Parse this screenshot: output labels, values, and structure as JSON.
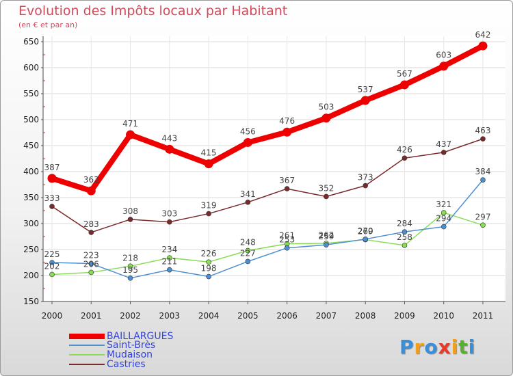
{
  "header": {
    "title": "Evolution des Impôts locaux par Habitant",
    "subtitle": "(en € et par an)"
  },
  "logo": {
    "text": "Proxiti",
    "colors": [
      "#3a8fd8",
      "#f0a020",
      "#3a8fd8",
      "#e83a2a",
      "#f0a020",
      "#58b030",
      "#3a8fd8"
    ]
  },
  "chart_data": {
    "type": "line",
    "x": [
      "2000",
      "2001",
      "2002",
      "2003",
      "2004",
      "2005",
      "2006",
      "2007",
      "2008",
      "2009",
      "2010",
      "2011"
    ],
    "ylim": [
      150,
      650
    ],
    "yticks": [
      150,
      200,
      250,
      300,
      350,
      400,
      450,
      500,
      550,
      600,
      650
    ],
    "grid": "horizontal",
    "legend_position": "bottom-left",
    "series": [
      {
        "name": "BAILLARGUES",
        "color": "#ee0000",
        "label_color": "#444444",
        "values": [
          387,
          363,
          471,
          443,
          415,
          456,
          476,
          503,
          537,
          567,
          603,
          642
        ]
      },
      {
        "name": "Saint-Brès",
        "color": "#4d8fcf",
        "label_color": "#444444",
        "values": [
          225,
          223,
          195,
          211,
          198,
          227,
          253,
          259,
          270,
          284,
          294,
          384
        ]
      },
      {
        "name": "Mudaison",
        "color": "#88dd55",
        "label_color": "#444444",
        "values": [
          202,
          206,
          218,
          234,
          226,
          248,
          261,
          262,
          269,
          258,
          321,
          297
        ]
      },
      {
        "name": "Castries",
        "color": "#7a2a2a",
        "label_color": "#444444",
        "values": [
          333,
          283,
          308,
          303,
          319,
          341,
          367,
          352,
          373,
          426,
          437,
          463
        ]
      }
    ]
  }
}
